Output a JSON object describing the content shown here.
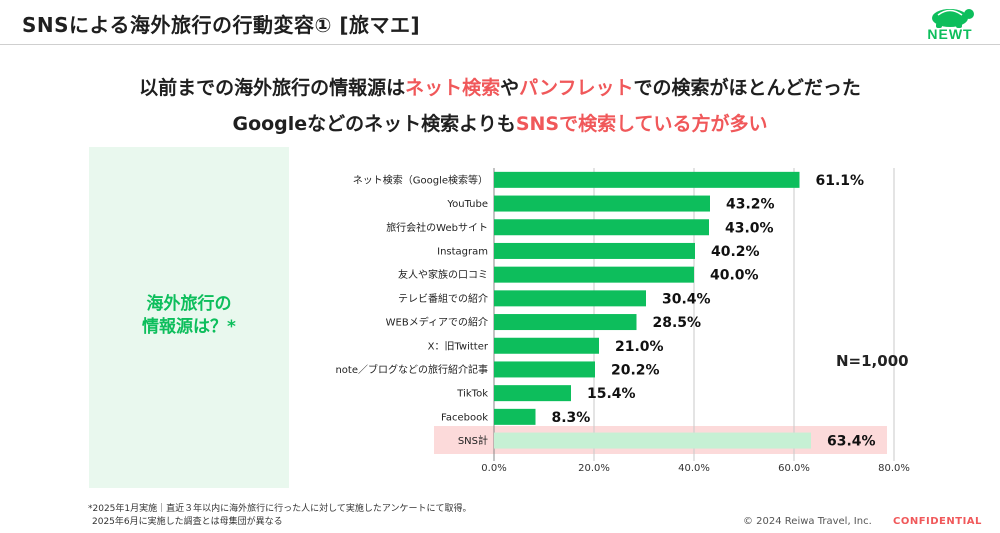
{
  "slide": {
    "title": "SNSによる海外旅行の行動変容① [旅マエ]",
    "logo_text": "NEWT",
    "headline1": {
      "part1": "以前までの海外旅行の情報源は",
      "part2": "ネット検索",
      "part3": "や",
      "part4": "パンフレット",
      "part5": "での検索がほとんどだった"
    },
    "headline2": {
      "part1": "Googleなどのネット検索よりも",
      "part2": "SNSで検索している方が多い"
    },
    "side_question_line1": "海外旅行の",
    "side_question_line2": "情報源は？*",
    "n_label": "N=1,000",
    "footnote_line1": "*2025年1月実施｜直近３年以内に海外旅行に行った人に対して実施したアンケートにて取得。",
    "footnote_line2": "2025年6月に実施した調査とは母集団が異なる",
    "copyright": "© 2024 Reiwa Travel, Inc.",
    "confidential": "CONFIDENTIAL"
  },
  "colors": {
    "accent": "#0dbe5c",
    "highlight_bar": "#c6f0d4",
    "highlight_band": "#fcdada",
    "emphasis_text": "#f0585a",
    "side_panel": "#e9f8ee"
  },
  "chart_data": {
    "type": "bar",
    "orientation": "horizontal",
    "categories": [
      "ネット検索（Google検索等）",
      "YouTube",
      "旅行会社のWebサイト",
      "Instagram",
      "友人や家族の口コミ",
      "テレビ番組での紹介",
      "WEBメディアでの紹介",
      "X：旧Twitter",
      "note／ブログなどの旅行紹介記事",
      "TikTok",
      "Facebook",
      "SNS計"
    ],
    "values": [
      61.1,
      43.2,
      43.0,
      40.2,
      40.0,
      30.4,
      28.5,
      21.0,
      20.2,
      15.4,
      8.3,
      63.4
    ],
    "value_labels": [
      "61.1%",
      "43.2%",
      "43.0%",
      "40.2%",
      "40.0%",
      "30.4%",
      "28.5%",
      "21.0%",
      "20.2%",
      "15.4%",
      "8.3%",
      "63.4%"
    ],
    "highlighted_category": "SNS計",
    "xlim": [
      0,
      80
    ],
    "xticks": [
      0,
      20,
      40,
      60,
      80
    ],
    "xtick_labels": [
      "0.0%",
      "20.0%",
      "40.0%",
      "60.0%",
      "80.0%"
    ],
    "grid": true,
    "xlabel": "",
    "ylabel": ""
  }
}
